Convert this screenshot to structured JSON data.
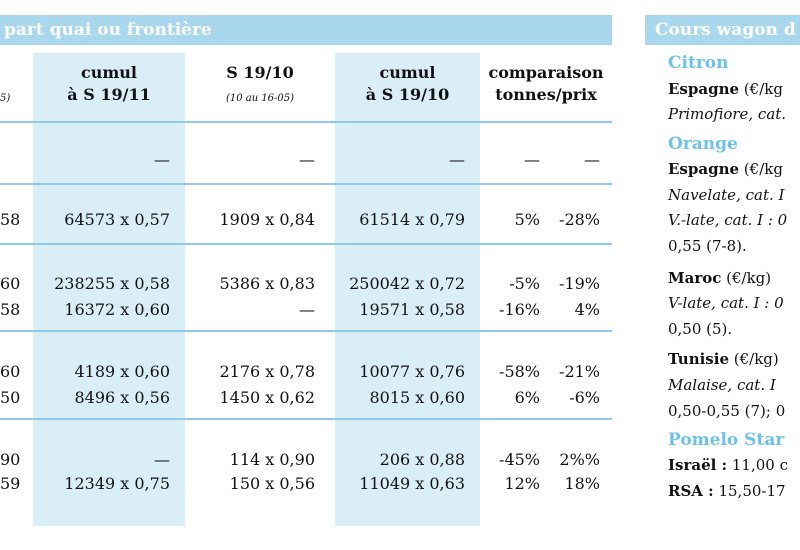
{
  "main": {
    "header": "part quai ou frontière",
    "left_edge_sub": "5)",
    "columns": [
      {
        "title": "cumul",
        "title2": "à S 19/11",
        "sub": ""
      },
      {
        "title": "S 19/10",
        "title2": "",
        "sub": "(10 au 16-05)"
      },
      {
        "title": "cumul",
        "title2": "à S 19/10",
        "sub": ""
      },
      {
        "title": "comparaison",
        "title2": "tonnes/prix",
        "sub": ""
      }
    ],
    "rows": [
      {
        "edge": "",
        "c1": "—",
        "c2": "—",
        "c3": "—",
        "pct1": "—",
        "pct2": "—"
      },
      {
        "edge": "58",
        "c1": "64573 x 0,57",
        "c2": "1909 x 0,84",
        "c3": "61514 x 0,79",
        "pct1": "5%",
        "pct2": "-28%"
      },
      {
        "edge": "60",
        "c1": "238255 x 0,58",
        "c2": "5386 x 0,83",
        "c3": "250042 x 0,72",
        "pct1": "-5%",
        "pct2": "-19%"
      },
      {
        "edge": "58",
        "c1": "16372 x 0,60",
        "c2": "—",
        "c3": "19571 x 0,58",
        "pct1": "-16%",
        "pct2": "4%"
      },
      {
        "edge": "60",
        "c1": "4189 x 0,60",
        "c2": "2176 x 0,78",
        "c3": "10077 x 0,76",
        "pct1": "-58%",
        "pct2": "-21%"
      },
      {
        "edge": "50",
        "c1": "8496 x 0,56",
        "c2": "1450 x 0,62",
        "c3": "8015 x 0,60",
        "pct1": "6%",
        "pct2": "-6%"
      },
      {
        "edge": "90",
        "c1": "—",
        "c2": "114 x 0,90",
        "c3": "206 x 0,88",
        "pct1": "-45%",
        "pct2": "2%%"
      },
      {
        "edge": "59",
        "c1": "12349 x 0,75",
        "c2": "150 x 0,56",
        "c3": "11049 x 0,63",
        "pct1": "12%",
        "pct2": "18%"
      }
    ]
  },
  "side": {
    "header": "Cours wagon d",
    "citron_title": "Citron",
    "citron_line1_bold": "Espagne",
    "citron_line1_rest": " (€/kg",
    "citron_line2": "Primofiore, cat.",
    "orange_title": "Orange",
    "orange_line1_bold": "Espagne",
    "orange_line1_rest": " (€/kg",
    "orange_line2": "Navelate, cat. I",
    "orange_line3": "V.-late, cat. I : 0",
    "orange_line4": "0,55 (7-8).",
    "maroc_bold": "Maroc",
    "maroc_rest": " (€/kg)",
    "maroc_line2": "V-late, cat. I : 0",
    "maroc_line3": "0,50 (5).",
    "tunisie_bold": "Tunisie",
    "tunisie_rest": " (€/kg)",
    "tunisie_line2": "Malaise, cat. I",
    "tunisie_line3": "0,50-0,55 (7); 0",
    "pomelo_title": "Pomelo Star",
    "israel_bold": "Israël :",
    "israel_rest": " 11,00 c",
    "rsa_bold": "RSA :",
    "rsa_rest": " 15,50-17"
  }
}
